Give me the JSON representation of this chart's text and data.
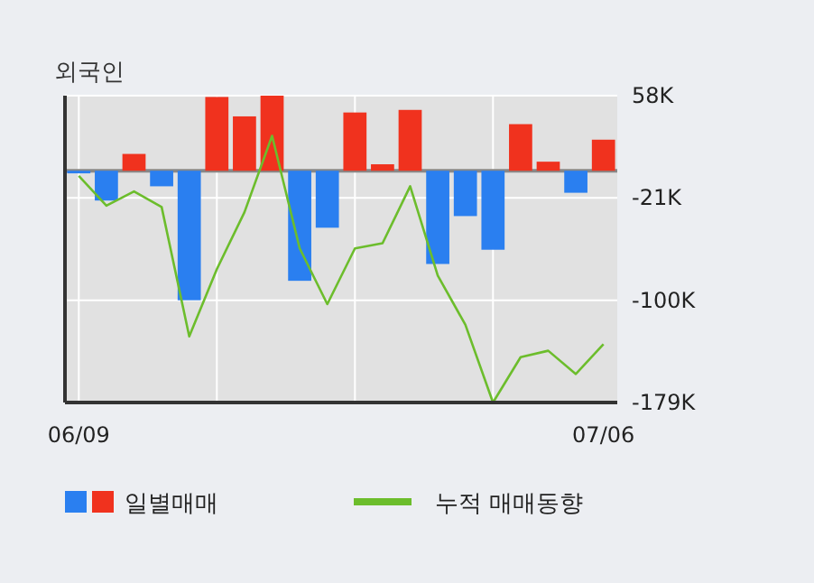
{
  "chart_data": {
    "type": "bar",
    "title": "외국인",
    "categories": [
      "06/09",
      null,
      null,
      null,
      null,
      null,
      null,
      null,
      null,
      null,
      null,
      null,
      null,
      null,
      null,
      null,
      null,
      null,
      null,
      "07/06"
    ],
    "series": [
      {
        "name": "일별매매",
        "colors": [
          "#2a7ff0",
          "#2a7ff0",
          "#f0321e",
          "#2a7ff0",
          "#2a7ff0",
          "#f0321e",
          "#f0321e",
          "#f0321e",
          "#2a7ff0",
          "#2a7ff0",
          "#f0321e",
          "#f0321e",
          "#f0321e",
          "#2a7ff0",
          "#2a7ff0",
          "#2a7ff0",
          "#f0321e",
          "#f0321e",
          "#2a7ff0",
          "#f0321e"
        ],
        "values": [
          -2,
          -23,
          13,
          -12,
          -100,
          57,
          42,
          58,
          -85,
          -44,
          45,
          5,
          47,
          -72,
          -35,
          -61,
          36,
          7,
          -17,
          24
        ]
      },
      {
        "name": "누적 매매동향",
        "type": "line",
        "color": "#6cbd2c",
        "values": [
          -4,
          -27,
          -16,
          -28,
          -128,
          -76,
          -32,
          27,
          -60,
          -103,
          -60,
          -56,
          -12,
          -81,
          -119,
          -179,
          -144,
          -139,
          -157,
          -134
        ]
      }
    ],
    "ylim": [
      -179,
      58
    ],
    "yticks": [
      {
        "value": 58,
        "label": "58K"
      },
      {
        "value": -21,
        "label": "-21K"
      },
      {
        "value": -100,
        "label": "-100K"
      },
      {
        "value": -179,
        "label": "-179K"
      }
    ],
    "grid": true,
    "legend": "bottom"
  }
}
